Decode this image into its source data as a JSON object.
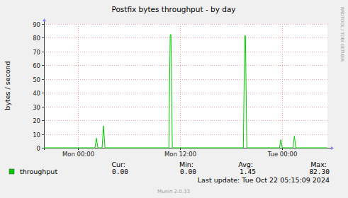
{
  "chart_data": {
    "type": "line",
    "title": "Postfix bytes throughput - by day",
    "y_label": "bytes / second",
    "watermark": "RRDTOOL / TOBI OETIKER",
    "last_update": "Last update: Tue Oct 22 05:15:09 2024",
    "footer": "Munin 2.0.33",
    "x": [
      -4,
      1.99,
      2.17,
      2.33,
      2.83,
      3.0,
      3.17,
      10.67,
      10.83,
      10.92,
      11.08,
      19.42,
      19.58,
      19.67,
      19.83,
      23.67,
      23.83,
      24.0,
      25.25,
      25.42,
      25.58,
      29.25
    ],
    "xlim": [
      -4,
      29.3
    ],
    "xticks": [
      {
        "value": 0,
        "label": "Mon 00:00"
      },
      {
        "value": 12,
        "label": "Mon 12:00"
      },
      {
        "value": 24,
        "label": "Tue 00:00"
      }
    ],
    "ylim": [
      0,
      90
    ],
    "yticks": [
      0,
      10,
      20,
      30,
      40,
      50,
      60,
      70,
      80,
      90
    ],
    "grid": true,
    "series": [
      {
        "name": "throughput",
        "color": "#00cc00",
        "values": [
          0,
          0,
          7,
          0,
          0,
          16,
          0,
          0,
          82.3,
          82.3,
          0,
          0,
          81.5,
          81.5,
          0,
          0,
          6,
          0,
          0,
          8.5,
          0,
          0
        ],
        "stats": [
          {
            "label": "Cur:",
            "value": "0.00"
          },
          {
            "label": "Min:",
            "value": "0.00"
          },
          {
            "label": "Avg:",
            "value": "1.45"
          },
          {
            "label": "Max:",
            "value": "82.30"
          }
        ]
      }
    ]
  }
}
